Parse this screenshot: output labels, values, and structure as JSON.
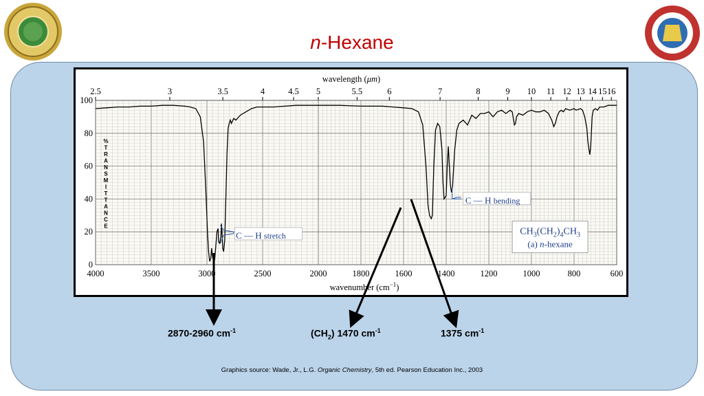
{
  "title": {
    "italic": "n",
    "rest": "-Hexane"
  },
  "logos": {
    "left": "university-seal-logo",
    "right": "pharmacy-college-logo"
  },
  "callouts": [
    {
      "text": "2870-2960 cm",
      "sup": "-1"
    },
    {
      "pre": "(CH",
      "sub": "2",
      "post": ") 1470 cm",
      "sup": "-1"
    },
    {
      "text": "1375 cm",
      "sup": "-1"
    }
  ],
  "source": {
    "prefix": "Graphics source: Wade, Jr., L.G. ",
    "italic": "Organic Chemistry",
    "suffix": ", 5th ed. Pearson Education Inc., 2003"
  },
  "chart_data": {
    "type": "line",
    "x_axis_label": "wavenumber (cm",
    "x_axis_label_sup": "−1",
    "x_axis_label_end": ")",
    "top_axis_label": "wavelength (",
    "top_axis_label_mu": "μm",
    "top_axis_label_end": ")",
    "y_axis_label_letters": [
      "%",
      "T",
      "R",
      "A",
      "N",
      "S",
      "M",
      "I",
      "T",
      "T",
      "A",
      "N",
      "C",
      "E"
    ],
    "x_ticks": [
      4000,
      3500,
      3000,
      2500,
      2000,
      1800,
      1600,
      1400,
      1200,
      1000,
      800,
      600
    ],
    "x_tick_labels": [
      "4000",
      "3500",
      "3000",
      "2500",
      "2000",
      "1800",
      "1600",
      "1400",
      "1200",
      "1000",
      "800",
      "600"
    ],
    "y_ticks": [
      0,
      20,
      40,
      60,
      80,
      100
    ],
    "y_tick_labels": [
      "0",
      "20",
      "40",
      "60",
      "80",
      "100"
    ],
    "top_ticks": [
      2.5,
      3,
      3.5,
      4,
      4.5,
      5,
      5.5,
      6,
      7,
      8,
      9,
      10,
      11,
      12,
      13,
      14,
      15,
      16
    ],
    "top_tick_labels": [
      "2.5",
      "3",
      "3.5",
      "4",
      "4.5",
      "5",
      "5.5",
      "6",
      "7",
      "8",
      "9",
      "10",
      "11",
      "12",
      "13",
      "14",
      "15",
      "16"
    ],
    "ylim": [
      0,
      100
    ],
    "grid": true,
    "series": [
      {
        "points": [
          [
            4000,
            95
          ],
          [
            3900,
            95.5
          ],
          [
            3800,
            96
          ],
          [
            3700,
            96
          ],
          [
            3600,
            96.5
          ],
          [
            3500,
            96.5
          ],
          [
            3400,
            97
          ],
          [
            3300,
            97
          ],
          [
            3200,
            96.5
          ],
          [
            3150,
            96
          ],
          [
            3100,
            95
          ],
          [
            3060,
            90
          ],
          [
            3030,
            75
          ],
          [
            3010,
            45
          ],
          [
            2995,
            20
          ],
          [
            2985,
            8
          ],
          [
            2975,
            2
          ],
          [
            2965,
            4
          ],
          [
            2958,
            10
          ],
          [
            2950,
            5
          ],
          [
            2940,
            2
          ],
          [
            2930,
            3
          ],
          [
            2920,
            12
          ],
          [
            2910,
            20
          ],
          [
            2900,
            22
          ],
          [
            2895,
            14
          ],
          [
            2885,
            13
          ],
          [
            2875,
            17
          ],
          [
            2870,
            25
          ],
          [
            2865,
            20
          ],
          [
            2858,
            10
          ],
          [
            2850,
            8
          ],
          [
            2840,
            15
          ],
          [
            2830,
            40
          ],
          [
            2820,
            68
          ],
          [
            2810,
            83
          ],
          [
            2800,
            86
          ],
          [
            2790,
            88
          ],
          [
            2780,
            86
          ],
          [
            2760,
            89
          ],
          [
            2740,
            88
          ],
          [
            2700,
            91
          ],
          [
            2650,
            93
          ],
          [
            2600,
            95
          ],
          [
            2550,
            96
          ],
          [
            2500,
            96
          ],
          [
            2400,
            96
          ],
          [
            2300,
            96.5
          ],
          [
            2200,
            97
          ],
          [
            2100,
            97
          ],
          [
            2000,
            97
          ],
          [
            1900,
            97
          ],
          [
            1800,
            96.5
          ],
          [
            1700,
            96.5
          ],
          [
            1650,
            96
          ],
          [
            1600,
            95.5
          ],
          [
            1560,
            95
          ],
          [
            1530,
            93
          ],
          [
            1510,
            85
          ],
          [
            1495,
            60
          ],
          [
            1485,
            36
          ],
          [
            1478,
            30
          ],
          [
            1470,
            28
          ],
          [
            1465,
            30
          ],
          [
            1458,
            60
          ],
          [
            1450,
            82
          ],
          [
            1440,
            86
          ],
          [
            1430,
            84
          ],
          [
            1420,
            70
          ],
          [
            1415,
            50
          ],
          [
            1410,
            40
          ],
          [
            1400,
            42
          ],
          [
            1395,
            60
          ],
          [
            1390,
            72
          ],
          [
            1385,
            60
          ],
          [
            1380,
            48
          ],
          [
            1375,
            44
          ],
          [
            1370,
            48
          ],
          [
            1360,
            70
          ],
          [
            1350,
            82
          ],
          [
            1340,
            86
          ],
          [
            1320,
            88
          ],
          [
            1300,
            85
          ],
          [
            1290,
            88
          ],
          [
            1280,
            91
          ],
          [
            1260,
            89
          ],
          [
            1240,
            92
          ],
          [
            1220,
            92
          ],
          [
            1200,
            93
          ],
          [
            1180,
            90
          ],
          [
            1160,
            93
          ],
          [
            1140,
            94
          ],
          [
            1120,
            92
          ],
          [
            1100,
            94
          ],
          [
            1090,
            93
          ],
          [
            1080,
            85
          ],
          [
            1075,
            86
          ],
          [
            1070,
            90
          ],
          [
            1060,
            92
          ],
          [
            1040,
            91
          ],
          [
            1020,
            93
          ],
          [
            1000,
            94
          ],
          [
            980,
            93
          ],
          [
            960,
            93
          ],
          [
            940,
            94
          ],
          [
            920,
            92
          ],
          [
            905,
            88
          ],
          [
            895,
            84
          ],
          [
            888,
            86
          ],
          [
            880,
            90
          ],
          [
            870,
            93
          ],
          [
            860,
            94
          ],
          [
            850,
            93
          ],
          [
            840,
            95
          ],
          [
            820,
            94
          ],
          [
            800,
            95
          ],
          [
            790,
            94
          ],
          [
            770,
            95
          ],
          [
            760,
            94
          ],
          [
            750,
            90
          ],
          [
            740,
            83
          ],
          [
            735,
            75
          ],
          [
            730,
            70
          ],
          [
            726,
            67
          ],
          [
            722,
            72
          ],
          [
            715,
            90
          ],
          [
            710,
            94
          ],
          [
            700,
            95
          ],
          [
            690,
            94
          ],
          [
            680,
            96
          ],
          [
            660,
            96
          ],
          [
            640,
            97
          ],
          [
            620,
            97
          ],
          [
            600,
            97
          ]
        ]
      }
    ],
    "annotations": [
      {
        "label": "C",
        "label2": "H",
        "text": "stretch"
      },
      {
        "label": "C",
        "label2": "H",
        "text": "bending"
      }
    ],
    "compound_formula": {
      "a": "CH",
      "b": "3",
      "c": "(CH",
      "d": "2",
      "e": ")",
      "f": "4",
      "g": "CH",
      "h": "3"
    },
    "compound_name": {
      "prefix": "(a) ",
      "italic": "n",
      "rest": "-hexane"
    }
  }
}
